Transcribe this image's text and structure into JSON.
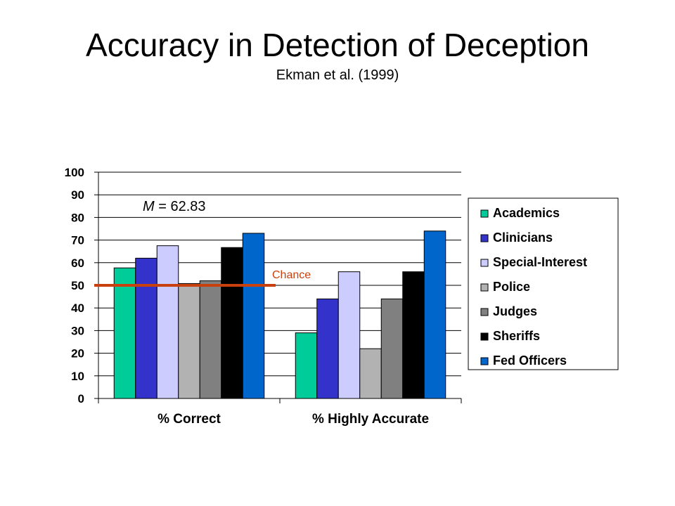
{
  "title": "Accuracy in Detection of Deception",
  "subtitle": "Ekman et al. (1999)",
  "colors": {
    "chance_line": "#c8400e",
    "chance_text": "#c8400e",
    "gridline": "#000000",
    "legend_border": "#000000"
  },
  "chart_data": {
    "type": "bar",
    "categories": [
      "% Correct",
      "% Highly Accurate"
    ],
    "ylim": [
      0,
      100
    ],
    "yticks": [
      0,
      10,
      20,
      30,
      40,
      50,
      60,
      70,
      80,
      90,
      100
    ],
    "grid": true,
    "legend_position": "right",
    "series": [
      {
        "name": "Academics",
        "color": "#00cc99",
        "values": [
          57.7,
          29
        ]
      },
      {
        "name": "Clinicians",
        "color": "#3333cc",
        "values": [
          62,
          44
        ]
      },
      {
        "name": "Special-Interest",
        "color": "#ccccff",
        "values": [
          67.5,
          56
        ]
      },
      {
        "name": "Police",
        "color": "#b2b2b2",
        "values": [
          50.8,
          22
        ]
      },
      {
        "name": "Judges",
        "color": "#808080",
        "values": [
          52,
          44
        ]
      },
      {
        "name": "Sheriffs",
        "color": "#000000",
        "values": [
          66.7,
          56
        ]
      },
      {
        "name": "Fed Officers",
        "color": "#0066cc",
        "values": [
          73,
          74
        ]
      }
    ],
    "annotations": {
      "mean_label_prefix": "M",
      "mean_label_suffix": " = 62.83",
      "chance_label": "Chance",
      "chance_value": 50
    }
  }
}
